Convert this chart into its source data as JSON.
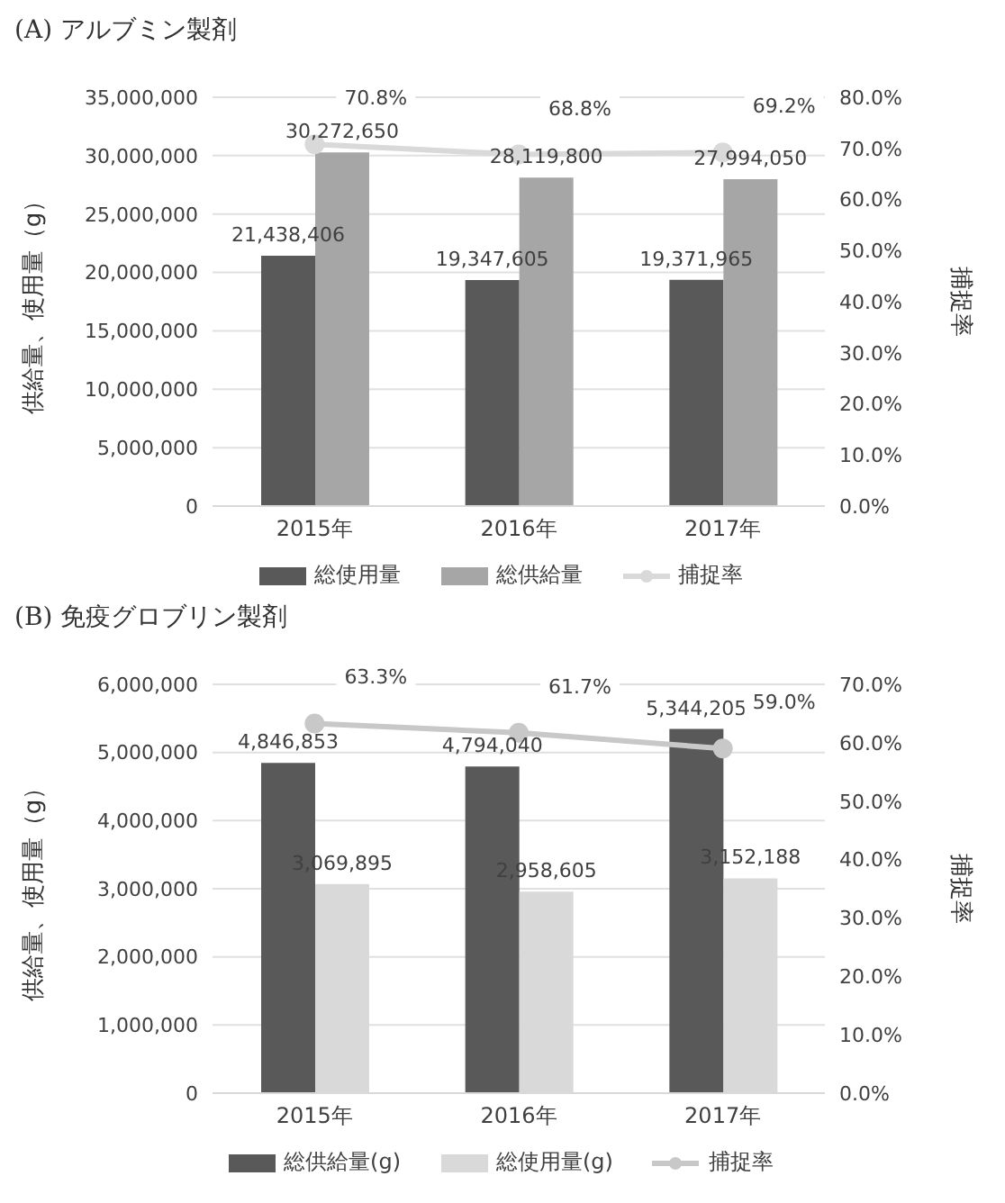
{
  "chart_data": [
    {
      "type": "bar",
      "title": "(A) アルブミン製剤",
      "ylabel": "供給量、使用量（g）",
      "y2label": "捕捉率",
      "categories": [
        "2015年",
        "2016年",
        "2017年"
      ],
      "series": [
        {
          "name": "総使用量",
          "color": "#595959",
          "values": [
            21438406,
            19347605,
            19371965
          ],
          "value_labels": [
            "21,438,406",
            "19,347,605",
            "19,371,965"
          ]
        },
        {
          "name": "総供給量",
          "color": "#a6a6a6",
          "values": [
            30272650,
            28119800,
            27994050
          ],
          "value_labels": [
            "30,272,650",
            "28,119,800",
            "27,994,050"
          ]
        },
        {
          "name": "捕捉率",
          "type": "line",
          "axis": "y2",
          "color": "#d9d9d9",
          "values": [
            70.8,
            68.8,
            69.2
          ],
          "value_labels": [
            "70.8%",
            "68.8%",
            "69.2%"
          ]
        }
      ],
      "ylim": [
        0,
        35000000
      ],
      "yticks": [
        {
          "value": 0,
          "label": "0"
        },
        {
          "value": 5000000,
          "label": "5,000,000"
        },
        {
          "value": 10000000,
          "label": "10,000,000"
        },
        {
          "value": 15000000,
          "label": "15,000,000"
        },
        {
          "value": 20000000,
          "label": "20,000,000"
        },
        {
          "value": 25000000,
          "label": "25,000,000"
        },
        {
          "value": 30000000,
          "label": "30,000,000"
        },
        {
          "value": 35000000,
          "label": "35,000,000"
        }
      ],
      "y2lim": [
        0,
        80
      ],
      "y2ticks": [
        {
          "value": 0,
          "label": "0.0%"
        },
        {
          "value": 10,
          "label": "10.0%"
        },
        {
          "value": 20,
          "label": "20.0%"
        },
        {
          "value": 30,
          "label": "30.0%"
        },
        {
          "value": 40,
          "label": "40.0%"
        },
        {
          "value": 50,
          "label": "50.0%"
        },
        {
          "value": 60,
          "label": "60.0%"
        },
        {
          "value": 70,
          "label": "70.0%"
        },
        {
          "value": 80,
          "label": "80.0%"
        }
      ],
      "grid": "y",
      "legend": "bottom",
      "marker": "circle"
    },
    {
      "type": "bar",
      "title": "(B) 免疫グロブリン製剤",
      "ylabel": "供給量、使用量（g）",
      "y2label": "捕捉率",
      "categories": [
        "2015年",
        "2016年",
        "2017年"
      ],
      "series": [
        {
          "name": "総供給量(g)",
          "color": "#595959",
          "values": [
            4846853,
            4794040,
            5344205
          ],
          "value_labels": [
            "4,846,853",
            "4,794,040",
            "5,344,205"
          ]
        },
        {
          "name": "総使用量(g)",
          "color": "#d9d9d9",
          "values": [
            3069895,
            2958605,
            3152188
          ],
          "value_labels": [
            "3,069,895",
            "2,958,605",
            "3,152,188"
          ]
        },
        {
          "name": "捕捉率",
          "type": "line",
          "axis": "y2",
          "color": "#c8c8c8",
          "values": [
            63.3,
            61.7,
            59.0
          ],
          "value_labels": [
            "63.3%",
            "61.7%",
            "59.0%"
          ]
        }
      ],
      "ylim": [
        0,
        6000000
      ],
      "yticks": [
        {
          "value": 0,
          "label": "0"
        },
        {
          "value": 1000000,
          "label": "1,000,000"
        },
        {
          "value": 2000000,
          "label": "2,000,000"
        },
        {
          "value": 3000000,
          "label": "3,000,000"
        },
        {
          "value": 4000000,
          "label": "4,000,000"
        },
        {
          "value": 5000000,
          "label": "5,000,000"
        },
        {
          "value": 6000000,
          "label": "6,000,000"
        }
      ],
      "y2lim": [
        0,
        70
      ],
      "y2ticks": [
        {
          "value": 0,
          "label": "0.0%"
        },
        {
          "value": 10,
          "label": "10.0%"
        },
        {
          "value": 20,
          "label": "20.0%"
        },
        {
          "value": 30,
          "label": "30.0%"
        },
        {
          "value": 40,
          "label": "40.0%"
        },
        {
          "value": 50,
          "label": "50.0%"
        },
        {
          "value": 60,
          "label": "60.0%"
        },
        {
          "value": 70,
          "label": "70.0%"
        }
      ],
      "grid": "y",
      "legend": "bottom",
      "marker": "circle"
    }
  ]
}
